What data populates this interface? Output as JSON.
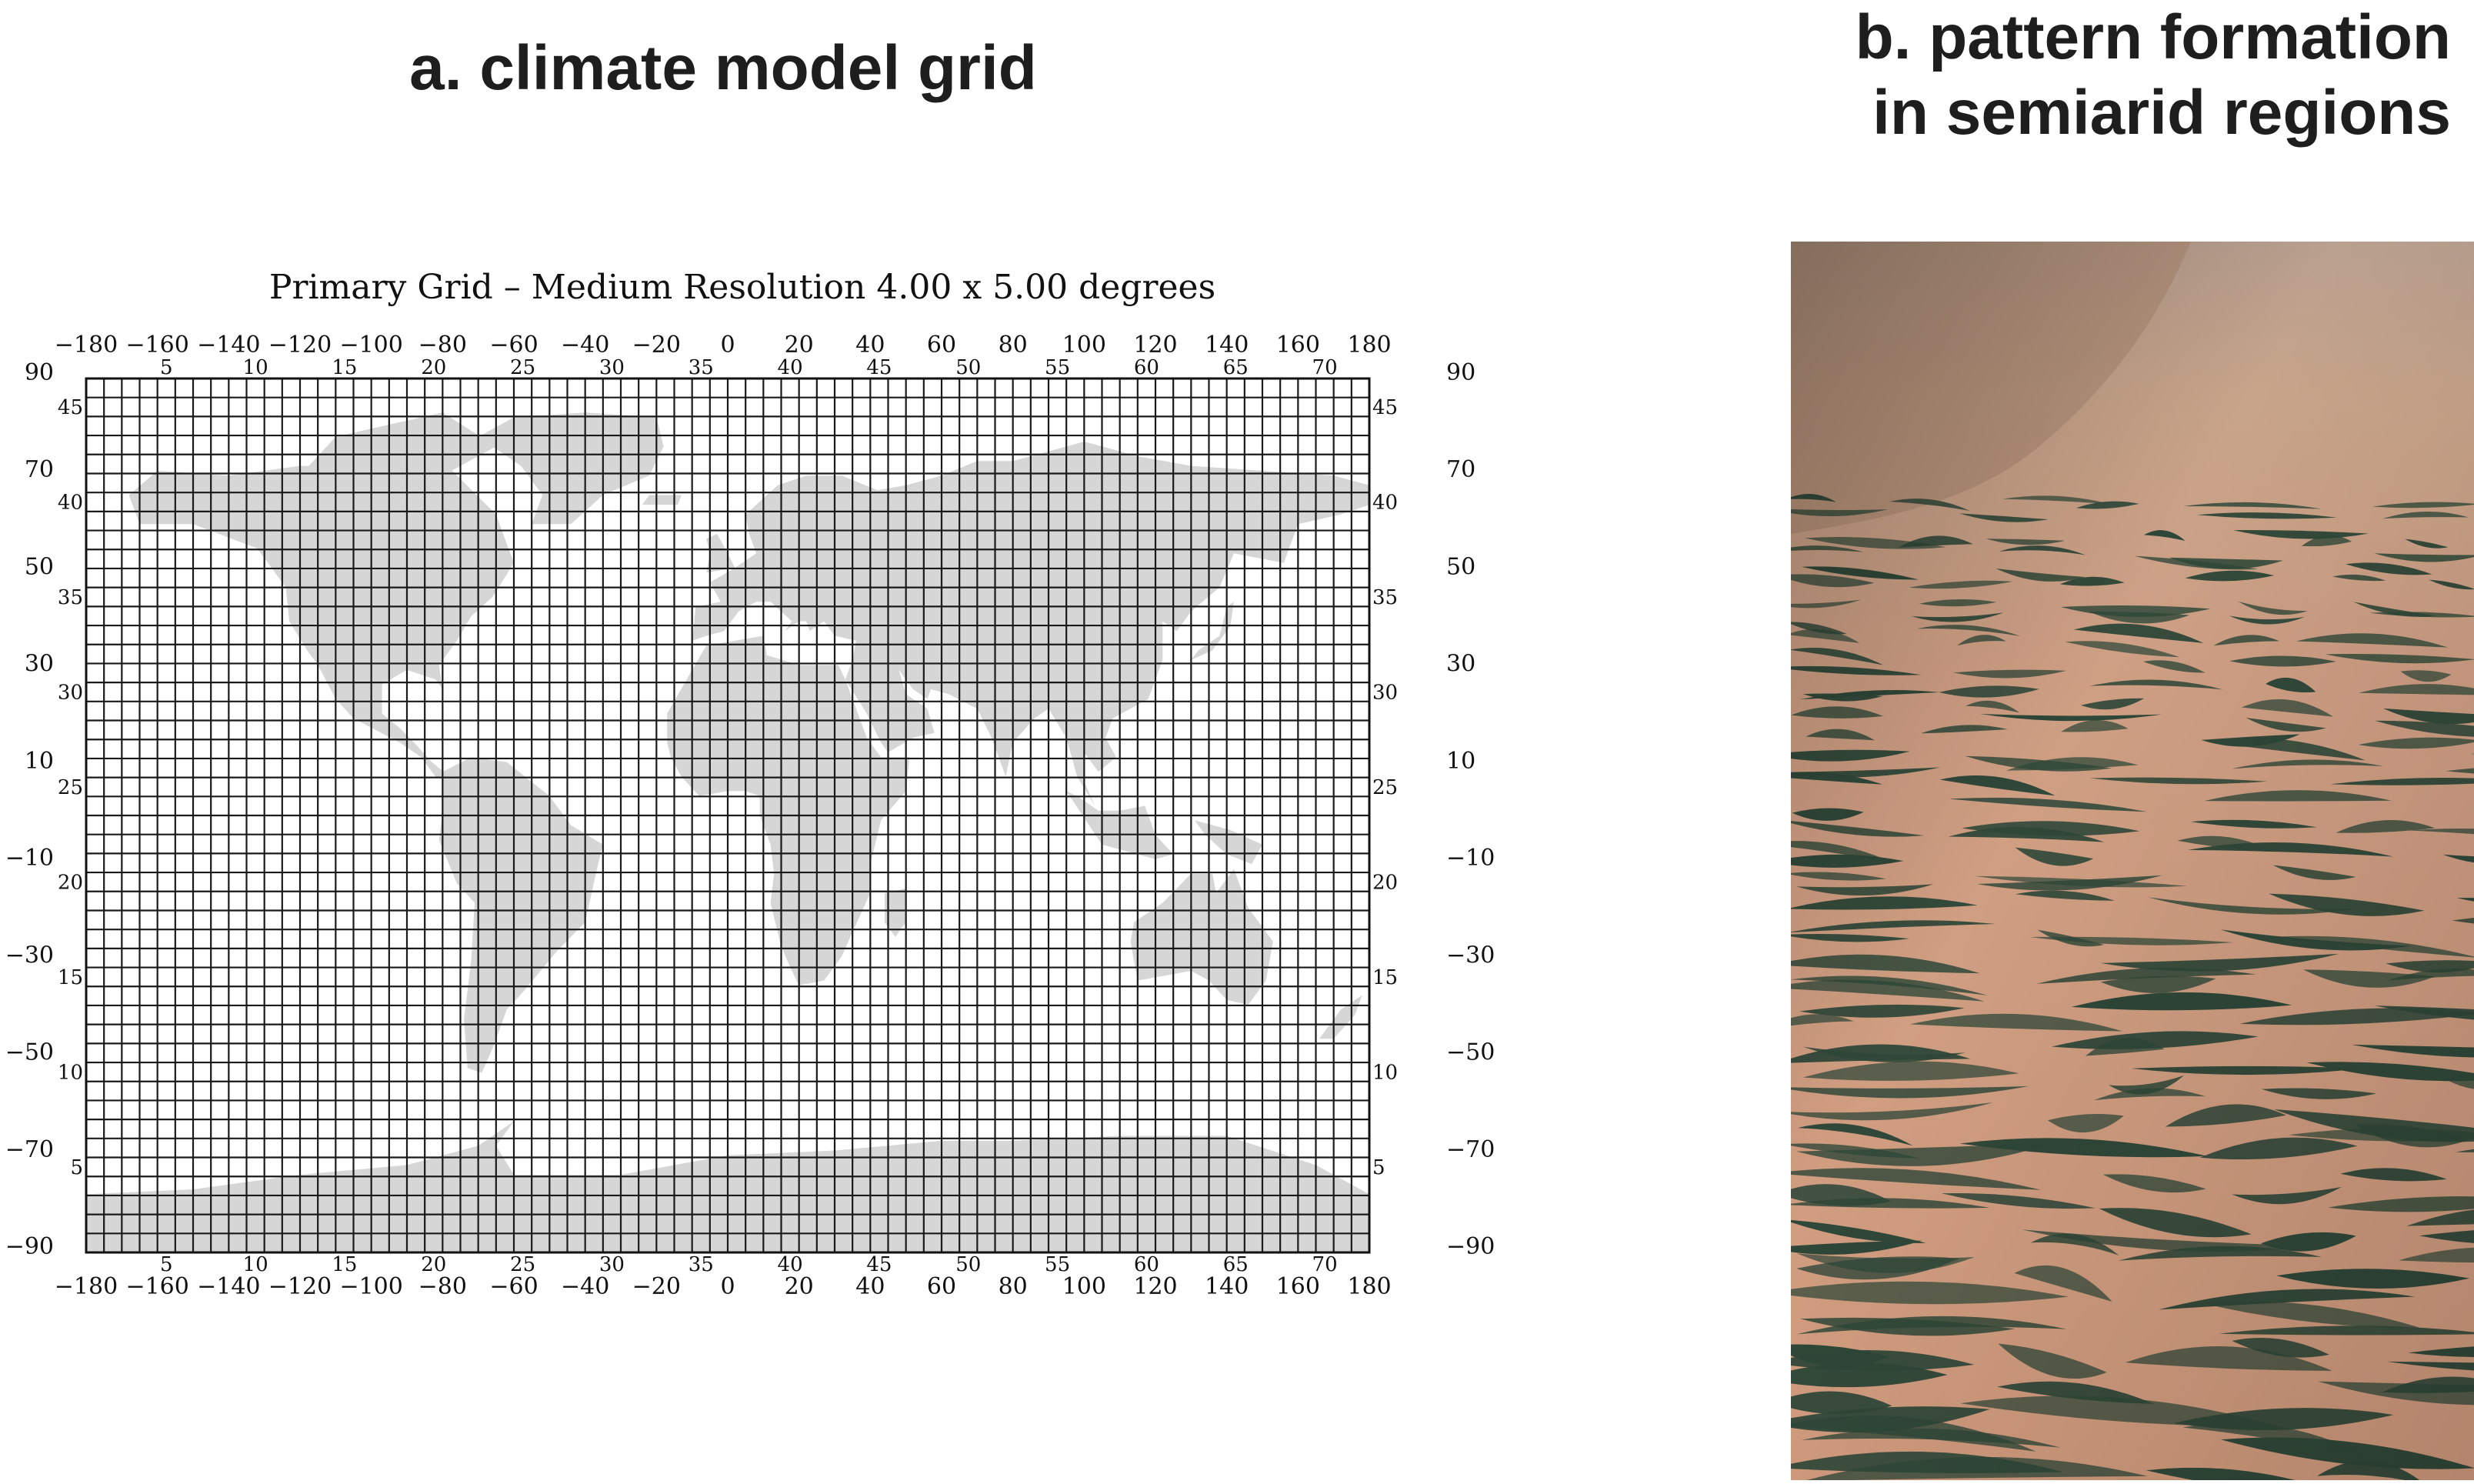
{
  "panel_a": {
    "title": "a. climate model grid",
    "map_title": "Primary Grid – Medium Resolution   4.00 x 5.00 degrees",
    "lon_labels": [
      "−180",
      "−160",
      "−140",
      "−120",
      "−100",
      "−80",
      "−60",
      "−40",
      "−20",
      "0",
      "20",
      "40",
      "60",
      "80",
      "100",
      "120",
      "140",
      "160",
      "180"
    ],
    "lon_index_labels": [
      "5",
      "10",
      "15",
      "20",
      "25",
      "30",
      "35",
      "40",
      "45",
      "50",
      "55",
      "60",
      "65",
      "70"
    ],
    "lat_labels": [
      "90",
      "70",
      "50",
      "30",
      "10",
      "−10",
      "−30",
      "−50",
      "−70",
      "−90"
    ],
    "lat_index_labels": [
      "45",
      "40",
      "35",
      "30",
      "25",
      "20",
      "15",
      "10",
      "5"
    ],
    "grid": {
      "lon_spacing_deg": 5,
      "lat_spacing_deg": 4,
      "columns": 72,
      "rows": 46
    },
    "colors": {
      "land": "#d6d6d6",
      "grid_line": "#1a1a1a",
      "ocean": "#ffffff"
    }
  },
  "panel_b": {
    "title_line1": "b. pattern formation",
    "title_line2": "in semiarid regions",
    "colors": {
      "sky_haze": "#c9a48a",
      "bare_soil": "#d4a082",
      "vegetation": "#2f4a3a"
    }
  }
}
